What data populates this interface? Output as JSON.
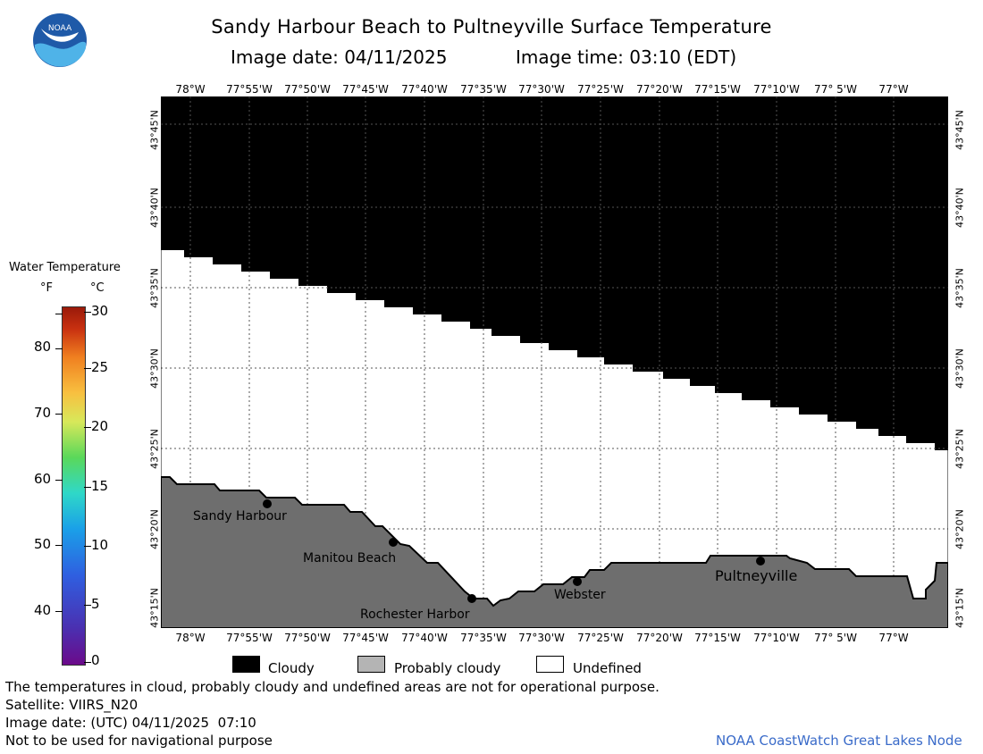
{
  "title": "Sandy Harbour Beach to Pultneyville Surface Temperature",
  "subtitle": {
    "date": "Image date: 04/11/2025",
    "time": "Image time: 03:10 (EDT)"
  },
  "logo_text": "NOAA",
  "lon_labels": [
    "78°W",
    "77°55'W",
    "77°50'W",
    "77°45'W",
    "77°40'W",
    "77°35'W",
    "77°30'W",
    "77°25'W",
    "77°20'W",
    "77°15'W",
    "77°10'W",
    "77° 5'W",
    "77°W"
  ],
  "lat_labels": [
    "43°45'N",
    "43°40'N",
    "43°35'N",
    "43°30'N",
    "43°25'N",
    "43°20'N",
    "43°15'N"
  ],
  "towns": [
    "Sandy Harbour",
    "Manitou Beach",
    "Rochester Harbor",
    "Webster",
    "Pultneyville"
  ],
  "colorbar": {
    "title": "Water Temperature",
    "unit_f": "°F",
    "unit_c": "°C",
    "f_labels": [
      "80",
      "70",
      "60",
      "50",
      "40"
    ],
    "c_labels": [
      "30",
      "25",
      "20",
      "15",
      "10",
      "5",
      "0"
    ]
  },
  "legend": {
    "cloudy": "Cloudy",
    "probably_cloudy": "Probably cloudy",
    "undefined": "Undefined"
  },
  "colors": {
    "cloudy": "#000000",
    "probably_cloudy": "#b4b4b4",
    "land": "#6e6e6e",
    "undefined": "#ffffff",
    "credit": "#3a6bc9"
  },
  "footer": {
    "disclaimer": "The temperatures in cloud, probably cloudy and undefined areas are not for operational purpose.",
    "satellite": "Satellite: VIIRS_N20",
    "utc_date": "Image date: (UTC) 04/11/2025  07:10",
    "nav": "Not to be used for navigational purpose",
    "credit": "NOAA CoastWatch Great Lakes Node"
  }
}
